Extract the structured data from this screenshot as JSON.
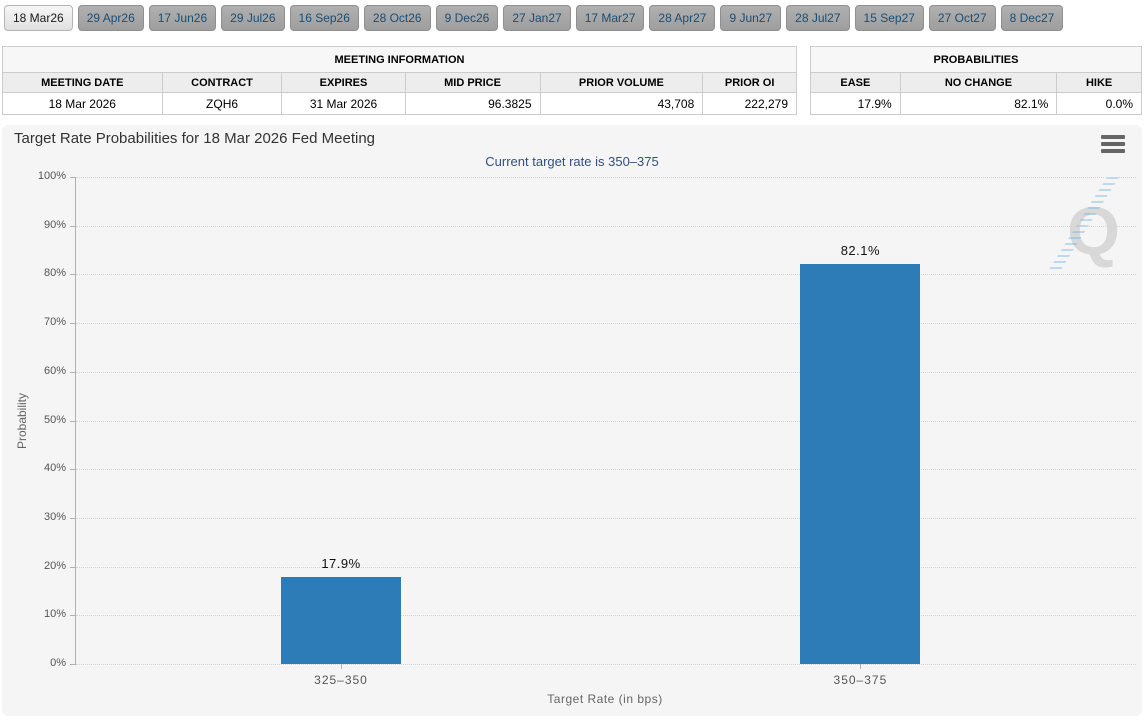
{
  "tab_bar": {
    "tabs": [
      {
        "label": "18 Mar26",
        "active": true
      },
      {
        "label": "29 Apr26",
        "active": false
      },
      {
        "label": "17 Jun26",
        "active": false
      },
      {
        "label": "29 Jul26",
        "active": false
      },
      {
        "label": "16 Sep26",
        "active": false
      },
      {
        "label": "28 Oct26",
        "active": false
      },
      {
        "label": "9 Dec26",
        "active": false
      },
      {
        "label": "27 Jan27",
        "active": false
      },
      {
        "label": "17 Mar27",
        "active": false
      },
      {
        "label": "28 Apr27",
        "active": false
      },
      {
        "label": "9 Jun27",
        "active": false
      },
      {
        "label": "28 Jul27",
        "active": false
      },
      {
        "label": "15 Sep27",
        "active": false
      },
      {
        "label": "27 Oct27",
        "active": false
      },
      {
        "label": "8 Dec27",
        "active": false
      }
    ]
  },
  "meeting_info_table": {
    "title": "MEETING INFORMATION",
    "columns": [
      "MEETING DATE",
      "CONTRACT",
      "EXPIRES",
      "MID PRICE",
      "PRIOR VOLUME",
      "PRIOR OI"
    ],
    "row": [
      "18 Mar 2026",
      "ZQH6",
      "31 Mar 2026",
      "96.3825",
      "43,708",
      "222,279"
    ]
  },
  "probabilities_table": {
    "title": "PROBABILITIES",
    "columns": [
      "EASE",
      "NO CHANGE",
      "HIKE"
    ],
    "row": [
      "17.9%",
      "82.1%",
      "0.0%"
    ]
  },
  "chart": {
    "title": "Target Rate Probabilities for 18 Mar 2026 Fed Meeting",
    "subtitle": "Current target rate is 350–375",
    "watermark_letter": "Q"
  },
  "chart_data": {
    "type": "bar",
    "title": "Target Rate Probabilities for 18 Mar 2026 Fed Meeting",
    "subtitle": "Current target rate is 350–375",
    "categories": [
      "325–350",
      "350–375"
    ],
    "values": [
      17.9,
      82.1
    ],
    "value_labels": [
      "17.9%",
      "82.1%"
    ],
    "xlabel": "Target Rate (in bps)",
    "ylabel": "Probability",
    "ylim": [
      0,
      100
    ],
    "ytick_step": 10,
    "ytick_suffix": "%",
    "grid": "dotted-horizontal",
    "legend": "none",
    "bar_color": "#2d7cb8"
  },
  "colors": {
    "bar": "#2d7cb8",
    "chart_background": "#f5f5f5",
    "subtitle_text": "#34507c",
    "tab_inactive_text": "#1c4e74",
    "grid_line": "#d4d4d4"
  }
}
